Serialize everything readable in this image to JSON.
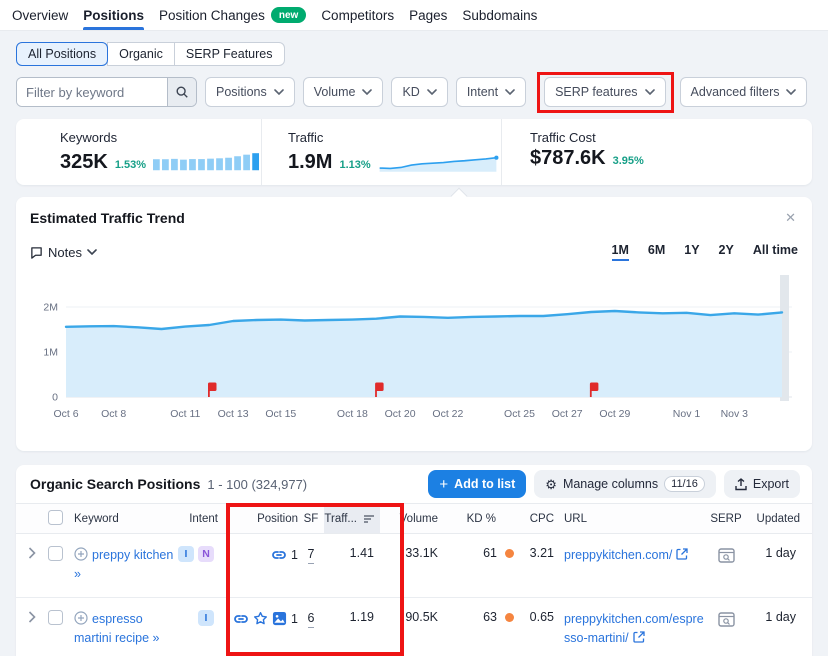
{
  "nav": {
    "items": [
      {
        "label": "Overview",
        "active": false
      },
      {
        "label": "Positions",
        "active": true
      },
      {
        "label": "Position Changes",
        "active": false,
        "badge": "new"
      },
      {
        "label": "Competitors",
        "active": false
      },
      {
        "label": "Pages",
        "active": false
      },
      {
        "label": "Subdomains",
        "active": false
      }
    ]
  },
  "view_tabs": {
    "selected": "All Positions",
    "items": [
      {
        "label": "All Positions"
      },
      {
        "label": "Organic"
      },
      {
        "label": "SERP Features"
      }
    ]
  },
  "filters": {
    "keyword_placeholder": "Filter by keyword",
    "dropdowns": [
      {
        "label": "Positions"
      },
      {
        "label": "Volume"
      },
      {
        "label": "KD"
      },
      {
        "label": "Intent"
      },
      {
        "label": "SERP features",
        "highlighted": true
      },
      {
        "label": "Advanced filters"
      }
    ]
  },
  "metrics": {
    "keywords": {
      "label": "Keywords",
      "value": "325K",
      "change": "1.53%",
      "bars": [
        58,
        58,
        60,
        56,
        59,
        59,
        61,
        63,
        66,
        74,
        82,
        90
      ]
    },
    "traffic": {
      "label": "Traffic",
      "value": "1.9M",
      "change": "1.13%",
      "spark": [
        1.56,
        1.55,
        1.58,
        1.66,
        1.7,
        1.72,
        1.74,
        1.78,
        1.8,
        1.83,
        1.86,
        1.9
      ]
    },
    "traffic_cost": {
      "label": "Traffic Cost",
      "value": "$787.6K",
      "change": "3.95%"
    }
  },
  "trend_panel": {
    "title": "Estimated Traffic Trend",
    "close_glyph": "✕",
    "notes_label": "Notes",
    "ranges": [
      {
        "label": "1M",
        "active": true
      },
      {
        "label": "6M",
        "active": false
      },
      {
        "label": "1Y",
        "active": false
      },
      {
        "label": "2Y",
        "active": false
      },
      {
        "label": "All time",
        "active": false
      }
    ]
  },
  "chart_data": {
    "type": "area",
    "title": "Estimated Traffic Trend",
    "x": [
      "Oct 6",
      "Oct 7",
      "Oct 8",
      "Oct 9",
      "Oct 10",
      "Oct 11",
      "Oct 12",
      "Oct 13",
      "Oct 14",
      "Oct 15",
      "Oct 16",
      "Oct 17",
      "Oct 18",
      "Oct 19",
      "Oct 20",
      "Oct 21",
      "Oct 22",
      "Oct 23",
      "Oct 24",
      "Oct 25",
      "Oct 26",
      "Oct 27",
      "Oct 28",
      "Oct 29",
      "Oct 30",
      "Oct 31",
      "Nov 1",
      "Nov 2",
      "Nov 3",
      "Nov 4",
      "Nov 5"
    ],
    "values_m": [
      1.56,
      1.57,
      1.575,
      1.55,
      1.51,
      1.565,
      1.6,
      1.69,
      1.71,
      1.72,
      1.7,
      1.71,
      1.72,
      1.74,
      1.79,
      1.78,
      1.76,
      1.78,
      1.79,
      1.8,
      1.8,
      1.84,
      1.89,
      1.91,
      1.88,
      1.86,
      1.87,
      1.82,
      1.86,
      1.83,
      1.88
    ],
    "ylim_m": [
      0,
      2.6
    ],
    "yticks": [
      "0",
      "1M",
      "2M"
    ],
    "xticks": [
      "Oct 6",
      "Oct 8",
      "Oct 11",
      "Oct 13",
      "Oct 15",
      "Oct 18",
      "Oct 20",
      "Oct 22",
      "Oct 25",
      "Oct 27",
      "Oct 29",
      "Nov 1",
      "Nov 3"
    ],
    "note_flags": [
      "Oct 12",
      "Oct 19",
      "Oct 28"
    ],
    "grid": true,
    "line_color": "#3aa7e8",
    "fill_color": "#d8edfb",
    "flag_color": "#e02b2b",
    "highlight_bar_color": "#e2e7ec"
  },
  "table": {
    "title": "Organic Search Positions",
    "range_text": "1 - 100 (324,977)",
    "buttons": {
      "add_icon": "+",
      "add_label": "Add to list",
      "gear_icon": "⚙",
      "manage_label": "Manage columns",
      "manage_badge": "11/16",
      "export_label": "Export"
    },
    "columns": [
      "Keyword",
      "Intent",
      "Position",
      "SF",
      "Traff...",
      "Volume",
      "KD %",
      "CPC",
      "URL",
      "SERP",
      "Updated"
    ],
    "sorted_column": "Traff...",
    "rows": [
      {
        "keyword": "preppy kitchen",
        "keyword_arrows": "»",
        "intents": [
          "I",
          "N"
        ],
        "position": "1",
        "position_icons": [
          "link"
        ],
        "sf": "7",
        "traffic_pct": "1.41",
        "volume": "33.1K",
        "kd": "61",
        "cpc": "3.21",
        "url": "preppykitchen.com/",
        "updated": "1 day"
      },
      {
        "keyword": "espresso martini recipe",
        "keyword_arrows": "»",
        "intents": [
          "I"
        ],
        "position": "1",
        "position_icons": [
          "link",
          "star",
          "image"
        ],
        "sf": "6",
        "traffic_pct": "1.19",
        "volume": "90.5K",
        "kd": "63",
        "cpc": "0.65",
        "url": "preppykitchen.com/espresso-martini/",
        "updated": "1 day"
      }
    ]
  },
  "ui_colors": {
    "accent_blue": "#2a74dc",
    "button_blue": "#1c80e3",
    "highlight_red": "#ee1414",
    "positive_green": "#169f87",
    "kd_dot_orange": "#f58540",
    "bar_light": "#8fcdf6",
    "bar_dark": "#2da0ef"
  }
}
